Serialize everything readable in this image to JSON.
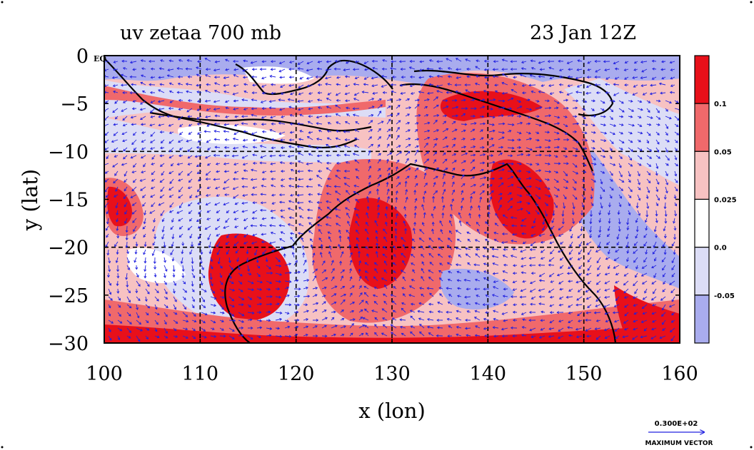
{
  "chart_data": {
    "type": "heatmap",
    "title_left": "uv zetaa 700 mb",
    "title_right": "23 Jan 12Z",
    "xlabel": "x (lon)",
    "ylabel": "y (lat)",
    "xlim": [
      100,
      160
    ],
    "ylim": [
      -30,
      0
    ],
    "xticks": [
      100,
      110,
      120,
      130,
      140,
      150,
      160
    ],
    "yticks": [
      0,
      -5,
      -10,
      -15,
      -20,
      -25,
      -30
    ],
    "ytick_labels": [
      "0",
      "−5",
      "−10",
      "−15",
      "−20",
      "−25",
      "−30"
    ],
    "eq_label": "EQ",
    "grid": true,
    "gridlines_dashed": {
      "lon": [
        110,
        120,
        130,
        140,
        150
      ],
      "lat": [
        -10,
        -20
      ]
    },
    "colorbar": {
      "labels": [
        "0.1",
        "0.05",
        "0.025",
        "0.0",
        "-0.05"
      ],
      "bands": [
        {
          "color": "#e8101a"
        },
        {
          "color": "#f0696b"
        },
        {
          "color": "#f7c2c2"
        },
        {
          "color": "#ffffff"
        },
        {
          "color": "#dcddf6"
        },
        {
          "color": "#a9acee"
        }
      ]
    },
    "max_vector": {
      "value": "0.300E+02",
      "label": "MAXIMUM VECTOR"
    },
    "vector_color": "#2020e0",
    "coast_color": "#000000"
  }
}
